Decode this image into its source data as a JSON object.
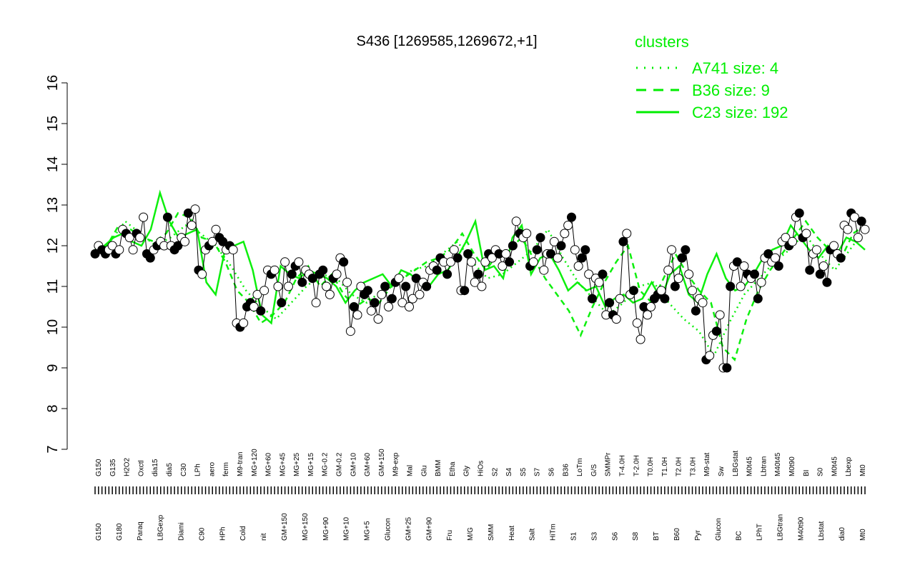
{
  "chart_data": {
    "type": "line",
    "title": "S436 [1269585,1269672,+1]",
    "ylim": [
      7,
      16
    ],
    "yticks": [
      "7",
      "8",
      "9",
      "10",
      "11",
      "12",
      "13",
      "14",
      "15",
      "16"
    ],
    "grid": false,
    "legend": {
      "placement": "top-right",
      "title": "clusters",
      "entries": [
        {
          "label": "A741 size: 4",
          "style": "dotted"
        },
        {
          "label": "B36 size: 9",
          "style": "dashed"
        },
        {
          "label": "C23 size: 192",
          "style": "solid"
        }
      ]
    },
    "x_labels_top": [
      "G150",
      "G135",
      "H2O2",
      "Oxctl",
      "dia15",
      "dia5",
      "C30",
      "LPh",
      "aero",
      "ferm",
      "M9-tran",
      "MG+120",
      "MG+60",
      "MG+45",
      "MG+25",
      "MG+15",
      "MG-0.2",
      "GM-0.2",
      "GM+10",
      "GM+60",
      "GM+150",
      "M9-exp",
      "Mal",
      "Glu",
      "BMM",
      "Etha",
      "Gly",
      "HiOs",
      "S2",
      "S4",
      "S5",
      "S7",
      "S6",
      "B36",
      "LoTm",
      "G/S",
      "SMMPr",
      "T-4.0H",
      "T-2.0H",
      "T0.0H",
      "T1.0H",
      "T2.0H",
      "T3.0H",
      "M9-stat",
      "Sw",
      "LBGstat",
      "M0t45",
      "Lbtran",
      "M40t45",
      "M0t90",
      "BI",
      "S0",
      "M0t45",
      "Lbexp",
      "Mt0"
    ],
    "x_labels_bottom": [
      "G150",
      "G180",
      "Paraq",
      "LBGexp",
      "Diami",
      "C90",
      "HPh",
      "Cold",
      "nit",
      "GM+150",
      "MG+150",
      "MG+90",
      "MG+10",
      "MG+5",
      "Glucon",
      "GM+25",
      "GM+90",
      "Fru",
      "M/G",
      "SMM",
      "Heat",
      "Salt",
      "HiTm",
      "S1",
      "S3",
      "S6",
      "S8",
      "BT",
      "B60",
      "Pyr",
      "Glucon",
      "BC",
      "LPhT",
      "LBGtran",
      "M40t90",
      "Lbstat",
      "dia0",
      "Mt0"
    ],
    "series": [
      {
        "name": "C23 size: 192",
        "style": "solid",
        "values": [
          11.9,
          12.0,
          12.2,
          12.3,
          12.1,
          12.0,
          12.4,
          13.3,
          12.6,
          12.2,
          12.3,
          12.4,
          11.1,
          10.8,
          11.9,
          12.0,
          12.1,
          11.4,
          10.3,
          10.1,
          11.5,
          11.3,
          11.2,
          11.4,
          11.3,
          11.2,
          11.0,
          10.6,
          10.9,
          11.1,
          11.2,
          11.3,
          11.0,
          11.4,
          11.3,
          11.1,
          11.0,
          11.3,
          11.4,
          11.7,
          12.1,
          12.6,
          11.4,
          11.5,
          11.2,
          12.2,
          12.5,
          11.3,
          11.7,
          11.8,
          11.4,
          10.9,
          11.1,
          10.9,
          11.0,
          10.5,
          10.7,
          10.8,
          10.6,
          10.7,
          11.1,
          10.7,
          11.3,
          11.5,
          10.8,
          10.6,
          11.3,
          11.8,
          11.2,
          10.9,
          11.0,
          11.3,
          11.7,
          11.9,
          12.0,
          12.5,
          12.2,
          11.9,
          11.7,
          12.0,
          11.8,
          12.2,
          12.1,
          11.9
        ]
      },
      {
        "name": "B36 size: 9",
        "style": "dashed",
        "values": [
          11.8,
          12.0,
          12.5,
          12.4,
          12.2,
          12.1,
          12.3,
          12.8,
          12.7,
          12.2,
          12.1,
          11.6,
          10.9,
          10.6,
          10.1,
          10.3,
          10.6,
          11.2,
          11.5,
          11.0,
          11.3,
          10.8,
          10.5,
          10.7,
          10.6,
          11.0,
          11.2,
          11.4,
          11.6,
          11.7,
          11.9,
          12.3,
          11.8,
          11.4,
          11.8,
          11.9,
          12.2,
          11.7,
          11.2,
          10.8,
          10.4,
          9.8,
          10.5,
          11.1,
          11.6,
          12.0,
          10.9,
          10.6,
          11.2,
          11.8,
          11.3,
          10.9,
          10.6,
          9.5,
          9.2,
          10.2,
          10.9,
          11.4,
          11.8,
          12.2,
          12.6,
          12.2,
          11.9,
          11.7,
          12.3,
          12.5
        ]
      },
      {
        "name": "A741 size: 4",
        "style": "dotted",
        "values": [
          11.8,
          12.1,
          12.6,
          12.3,
          12.0,
          12.2,
          12.5,
          12.3,
          12.0,
          11.5,
          10.9,
          10.5,
          10.2,
          10.6,
          11.0,
          11.3,
          11.2,
          10.8,
          10.6,
          10.9,
          11.1,
          11.4,
          11.5,
          11.8,
          12.1,
          11.6,
          11.2,
          11.3,
          11.6,
          11.9,
          12.4,
          11.7,
          11.1,
          10.7,
          10.3,
          10.6,
          11.0,
          11.1,
          10.6,
          10.2,
          9.9,
          9.3,
          10.1,
          10.8,
          11.2,
          11.6,
          11.9,
          12.3,
          11.8,
          11.4,
          11.9,
          12.4
        ]
      },
      {
        "name": "S436",
        "style": "points",
        "values": [
          11.8,
          12.0,
          11.9,
          11.8,
          11.9,
          12.0,
          11.8,
          11.9,
          12.4,
          12.3,
          12.2,
          11.9,
          12.3,
          12.2,
          12.7,
          11.8,
          11.7,
          11.9,
          12.0,
          12.1,
          12.0,
          12.7,
          12.0,
          11.9,
          12.0,
          12.2,
          12.1,
          12.8,
          12.5,
          12.9,
          11.4,
          11.3,
          11.9,
          12.0,
          12.1,
          12.4,
          12.2,
          12.1,
          11.9,
          12.0,
          11.9,
          10.1,
          10.0,
          10.1,
          10.5,
          10.6,
          10.5,
          10.8,
          10.4,
          10.9,
          11.4,
          11.3,
          11.4,
          11.0,
          10.6,
          11.6,
          11.0,
          11.3,
          11.5,
          11.6,
          11.1,
          11.4,
          11.3,
          11.2,
          10.6,
          11.3,
          11.4,
          11.0,
          10.8,
          11.2,
          11.3,
          11.7,
          11.6,
          11.1,
          9.9,
          10.5,
          10.3,
          11.0,
          10.8,
          10.9,
          10.4,
          10.6,
          10.2,
          10.8,
          11.0,
          10.5,
          10.7,
          11.1,
          11.2,
          10.6,
          11.0,
          10.5,
          10.7,
          11.2,
          10.8,
          11.1,
          11.0,
          11.4,
          11.5,
          11.4,
          11.7,
          11.6,
          11.3,
          11.6,
          11.9,
          11.7,
          10.9,
          10.9,
          11.8,
          11.6,
          11.1,
          11.3,
          11.0,
          11.6,
          11.8,
          11.7,
          11.9,
          11.8,
          11.5,
          11.8,
          11.6,
          12.0,
          12.6,
          12.3,
          12.2,
          12.3,
          11.5,
          11.6,
          11.9,
          12.2,
          11.4,
          11.8,
          11.8,
          12.1,
          11.7,
          12.0,
          12.3,
          12.5,
          12.7,
          11.9,
          11.5,
          11.7,
          11.9,
          11.3,
          10.7,
          11.2,
          11.1,
          11.3,
          10.3,
          10.6,
          10.3,
          10.2,
          10.7,
          12.1,
          12.3,
          10.8,
          10.9,
          10.1,
          9.7,
          10.5,
          10.3,
          10.5,
          10.7,
          10.8,
          10.9,
          10.7,
          11.4,
          11.9,
          11.0,
          11.2,
          11.7,
          11.9,
          11.3,
          10.9,
          10.4,
          10.7,
          10.6,
          9.2,
          9.3,
          9.8,
          9.9,
          10.3,
          9.0,
          9.0,
          11.0,
          11.5,
          11.6,
          11.0,
          11.5,
          11.3,
          11.2,
          11.3,
          10.7,
          11.1,
          11.7,
          11.8,
          11.6,
          11.7,
          11.5,
          12.1,
          12.2,
          12.0,
          12.1,
          12.7,
          12.8,
          12.2,
          12.3,
          11.4,
          11.8,
          11.9,
          11.3,
          11.5,
          11.1,
          11.9,
          12.0,
          11.8,
          11.7,
          12.5,
          12.4,
          12.8,
          12.7,
          12.2,
          12.6,
          12.4
        ]
      }
    ]
  }
}
